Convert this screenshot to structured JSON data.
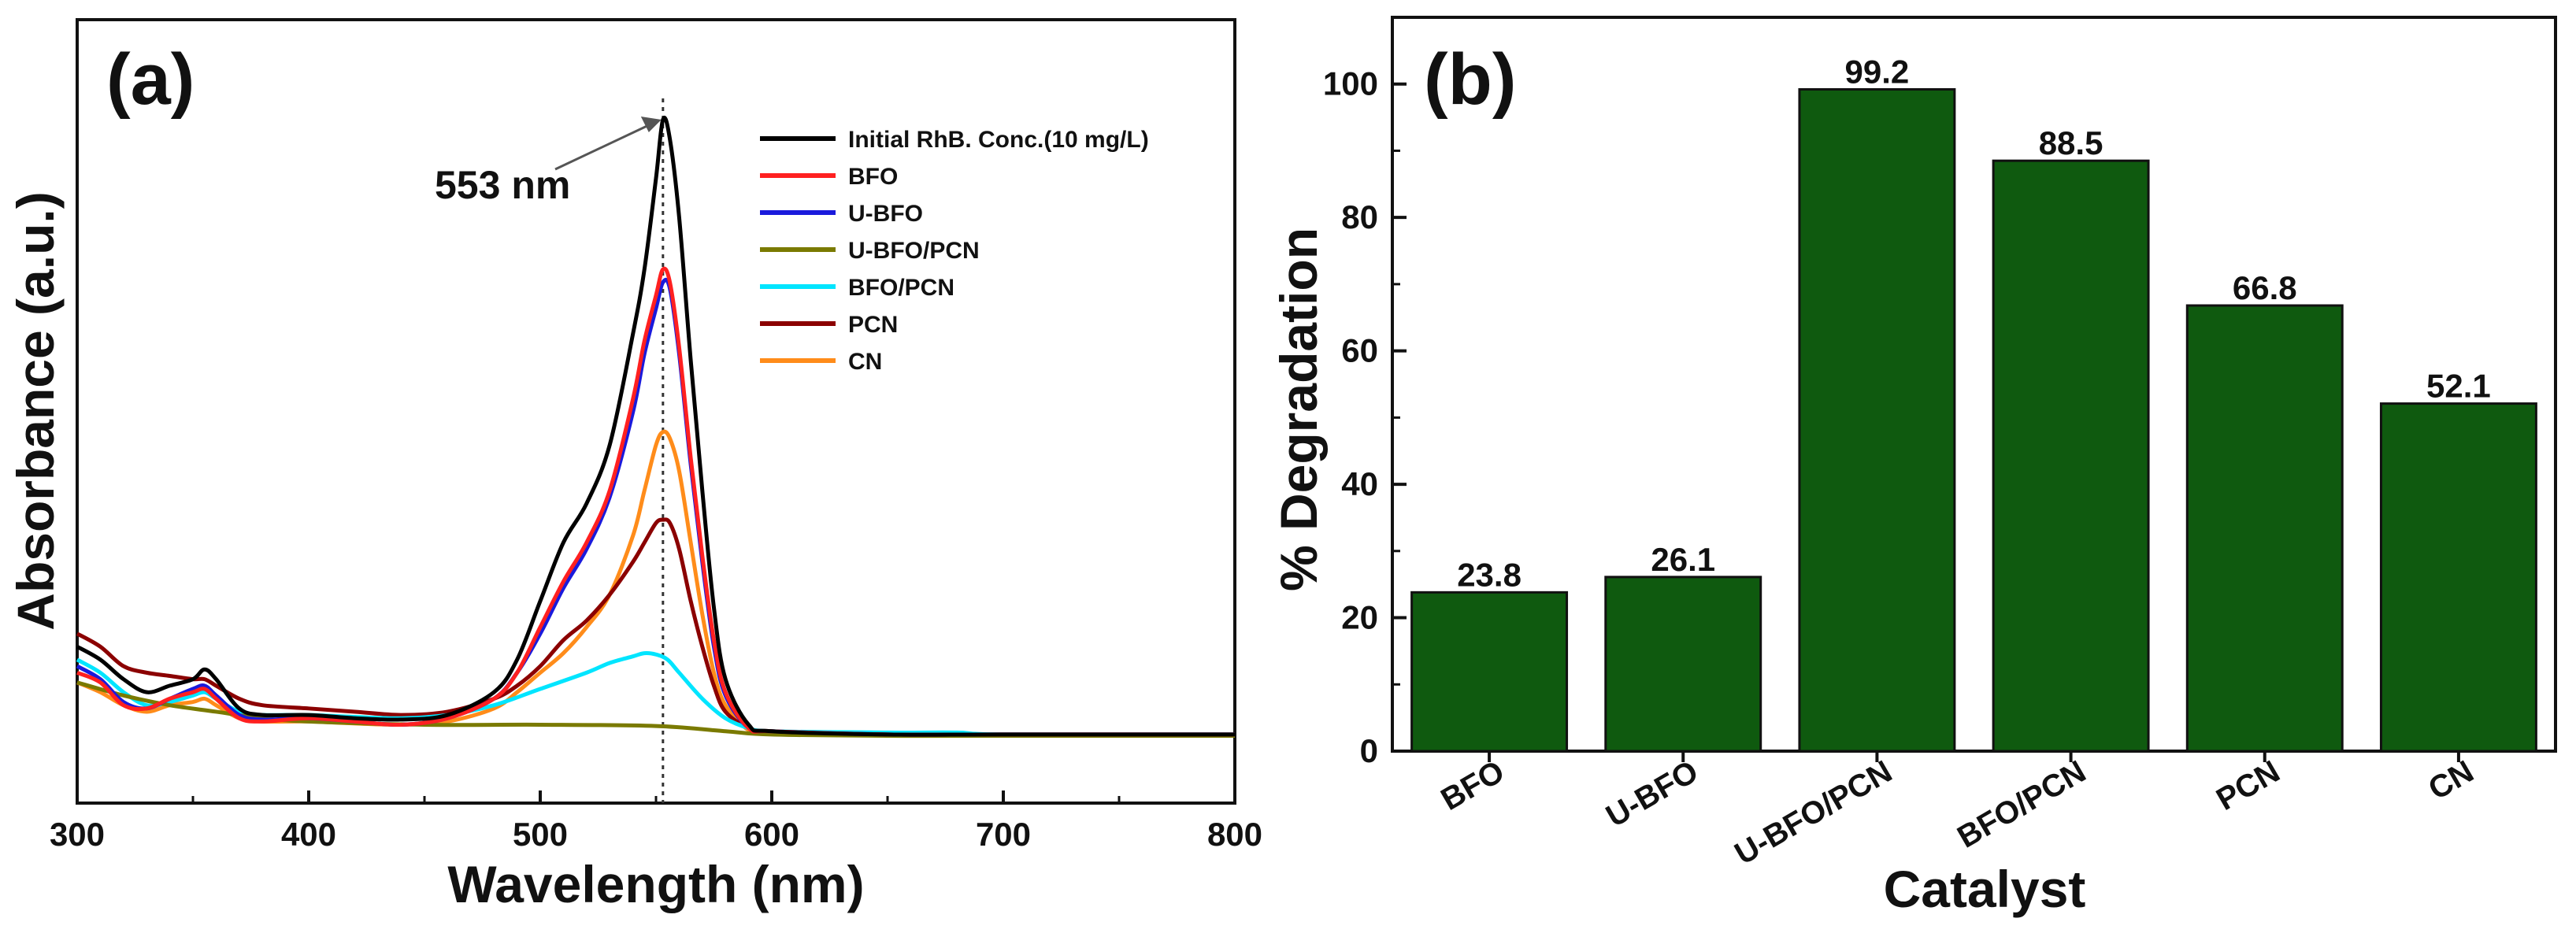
{
  "chart_data": [
    {
      "panel_label": "(a)",
      "type": "line",
      "xlabel": "Wavelength (nm)",
      "ylabel": "Absorbance (a.u.)",
      "xlim": [
        300,
        800
      ],
      "xticks": [
        "300",
        "400",
        "500",
        "600",
        "700",
        "800"
      ],
      "y_tick_labels": "none",
      "reference_line": {
        "x": 553,
        "style": "dotted"
      },
      "annotation": {
        "text": "553 nm",
        "arrow_to_x": 553
      },
      "legend_position": "top-right",
      "series": [
        {
          "name": "Initial RhB. Conc.(10 mg/L)",
          "color": "#000000",
          "x": [
            300,
            310,
            320,
            330,
            340,
            350,
            355,
            360,
            370,
            380,
            400,
            420,
            440,
            460,
            480,
            490,
            500,
            510,
            520,
            530,
            540,
            545,
            550,
            553,
            556,
            560,
            565,
            570,
            575,
            580,
            590,
            600,
            650,
            700,
            800
          ],
          "y": [
            0.14,
            0.12,
            0.09,
            0.07,
            0.08,
            0.09,
            0.105,
            0.09,
            0.045,
            0.035,
            0.035,
            0.03,
            0.028,
            0.035,
            0.07,
            0.12,
            0.21,
            0.3,
            0.36,
            0.45,
            0.62,
            0.72,
            0.86,
            0.95,
            0.92,
            0.8,
            0.58,
            0.38,
            0.2,
            0.09,
            0.02,
            0.01,
            0.005,
            0.005,
            0.005
          ]
        },
        {
          "name": "BFO",
          "color": "#ff2020",
          "x": [
            300,
            310,
            320,
            330,
            340,
            350,
            355,
            360,
            370,
            380,
            400,
            420,
            440,
            460,
            480,
            490,
            500,
            510,
            520,
            530,
            540,
            545,
            550,
            553,
            556,
            560,
            565,
            570,
            575,
            580,
            590,
            600,
            650,
            700,
            800
          ],
          "y": [
            0.1,
            0.085,
            0.05,
            0.045,
            0.06,
            0.07,
            0.075,
            0.06,
            0.03,
            0.025,
            0.03,
            0.025,
            0.02,
            0.03,
            0.06,
            0.1,
            0.17,
            0.24,
            0.3,
            0.38,
            0.52,
            0.61,
            0.68,
            0.72,
            0.7,
            0.6,
            0.43,
            0.28,
            0.15,
            0.07,
            0.015,
            0.01,
            0.005,
            0.005,
            0.005
          ]
        },
        {
          "name": "U-BFO",
          "color": "#1a1adc",
          "x": [
            300,
            310,
            320,
            330,
            340,
            350,
            355,
            360,
            370,
            380,
            400,
            420,
            440,
            460,
            480,
            490,
            500,
            510,
            520,
            530,
            540,
            545,
            550,
            553,
            556,
            560,
            565,
            570,
            575,
            580,
            590,
            600,
            650,
            700,
            800
          ],
          "y": [
            0.11,
            0.09,
            0.055,
            0.045,
            0.06,
            0.075,
            0.08,
            0.065,
            0.035,
            0.028,
            0.03,
            0.025,
            0.02,
            0.03,
            0.06,
            0.1,
            0.16,
            0.23,
            0.29,
            0.37,
            0.5,
            0.59,
            0.66,
            0.7,
            0.69,
            0.59,
            0.42,
            0.27,
            0.14,
            0.065,
            0.015,
            0.01,
            0.005,
            0.005,
            0.005
          ]
        },
        {
          "name": "U-BFO/PCN",
          "color": "#7a7a00",
          "x": [
            300,
            320,
            340,
            360,
            380,
            400,
            450,
            500,
            550,
            580,
            600,
            650,
            700,
            800
          ],
          "y": [
            0.085,
            0.065,
            0.05,
            0.04,
            0.03,
            0.025,
            0.02,
            0.02,
            0.018,
            0.01,
            0.005,
            0.003,
            0.003,
            0.003
          ]
        },
        {
          "name": "BFO/PCN",
          "color": "#00e5ff",
          "x": [
            300,
            310,
            320,
            330,
            340,
            350,
            355,
            360,
            370,
            380,
            400,
            420,
            440,
            460,
            480,
            500,
            520,
            530,
            540,
            545,
            550,
            555,
            560,
            570,
            580,
            590,
            600,
            650,
            680,
            700,
            800
          ],
          "y": [
            0.12,
            0.1,
            0.07,
            0.05,
            0.055,
            0.065,
            0.07,
            0.06,
            0.04,
            0.035,
            0.035,
            0.032,
            0.03,
            0.035,
            0.05,
            0.075,
            0.1,
            0.115,
            0.125,
            0.13,
            0.128,
            0.12,
            0.1,
            0.06,
            0.03,
            0.015,
            0.01,
            0.008,
            0.008,
            0.005,
            0.005
          ]
        },
        {
          "name": "PCN",
          "color": "#8b0000",
          "x": [
            300,
            310,
            320,
            330,
            340,
            350,
            355,
            360,
            370,
            380,
            400,
            420,
            440,
            460,
            480,
            490,
            500,
            510,
            520,
            530,
            540,
            545,
            550,
            553,
            556,
            560,
            565,
            570,
            575,
            580,
            590,
            600,
            650,
            700,
            800
          ],
          "y": [
            0.16,
            0.14,
            0.11,
            0.1,
            0.095,
            0.09,
            0.09,
            0.08,
            0.06,
            0.05,
            0.045,
            0.04,
            0.035,
            0.04,
            0.06,
            0.08,
            0.11,
            0.15,
            0.18,
            0.22,
            0.27,
            0.3,
            0.33,
            0.335,
            0.33,
            0.29,
            0.21,
            0.14,
            0.08,
            0.04,
            0.015,
            0.01,
            0.005,
            0.005,
            0.005
          ]
        },
        {
          "name": "CN",
          "color": "#ff8c1a",
          "x": [
            300,
            310,
            320,
            330,
            340,
            350,
            355,
            360,
            370,
            380,
            400,
            420,
            440,
            460,
            480,
            490,
            500,
            510,
            520,
            530,
            540,
            545,
            550,
            553,
            556,
            560,
            565,
            570,
            575,
            580,
            590,
            600,
            650,
            700,
            800
          ],
          "y": [
            0.085,
            0.07,
            0.05,
            0.04,
            0.05,
            0.055,
            0.06,
            0.05,
            0.03,
            0.025,
            0.025,
            0.022,
            0.02,
            0.025,
            0.045,
            0.07,
            0.1,
            0.13,
            0.17,
            0.22,
            0.31,
            0.38,
            0.45,
            0.47,
            0.46,
            0.41,
            0.3,
            0.19,
            0.1,
            0.05,
            0.012,
            0.008,
            0.004,
            0.004,
            0.004
          ]
        }
      ]
    },
    {
      "panel_label": "(b)",
      "type": "bar",
      "xlabel": "Catalyst",
      "ylabel": "% Degradation",
      "categories": [
        "BFO",
        "U-BFO",
        "U-BFO/PCN",
        "BFO/PCN",
        "PCN",
        "CN"
      ],
      "values": [
        23.8,
        26.1,
        99.2,
        88.5,
        66.8,
        52.1
      ],
      "value_labels": [
        "23.8",
        "26.1",
        "99.2",
        "88.5",
        "66.8",
        "52.1"
      ],
      "ylim": [
        0,
        110
      ],
      "yticks": [
        "0",
        "20",
        "40",
        "60",
        "80",
        "100"
      ],
      "bar_color": "#0f5a0f",
      "grid": false
    }
  ]
}
